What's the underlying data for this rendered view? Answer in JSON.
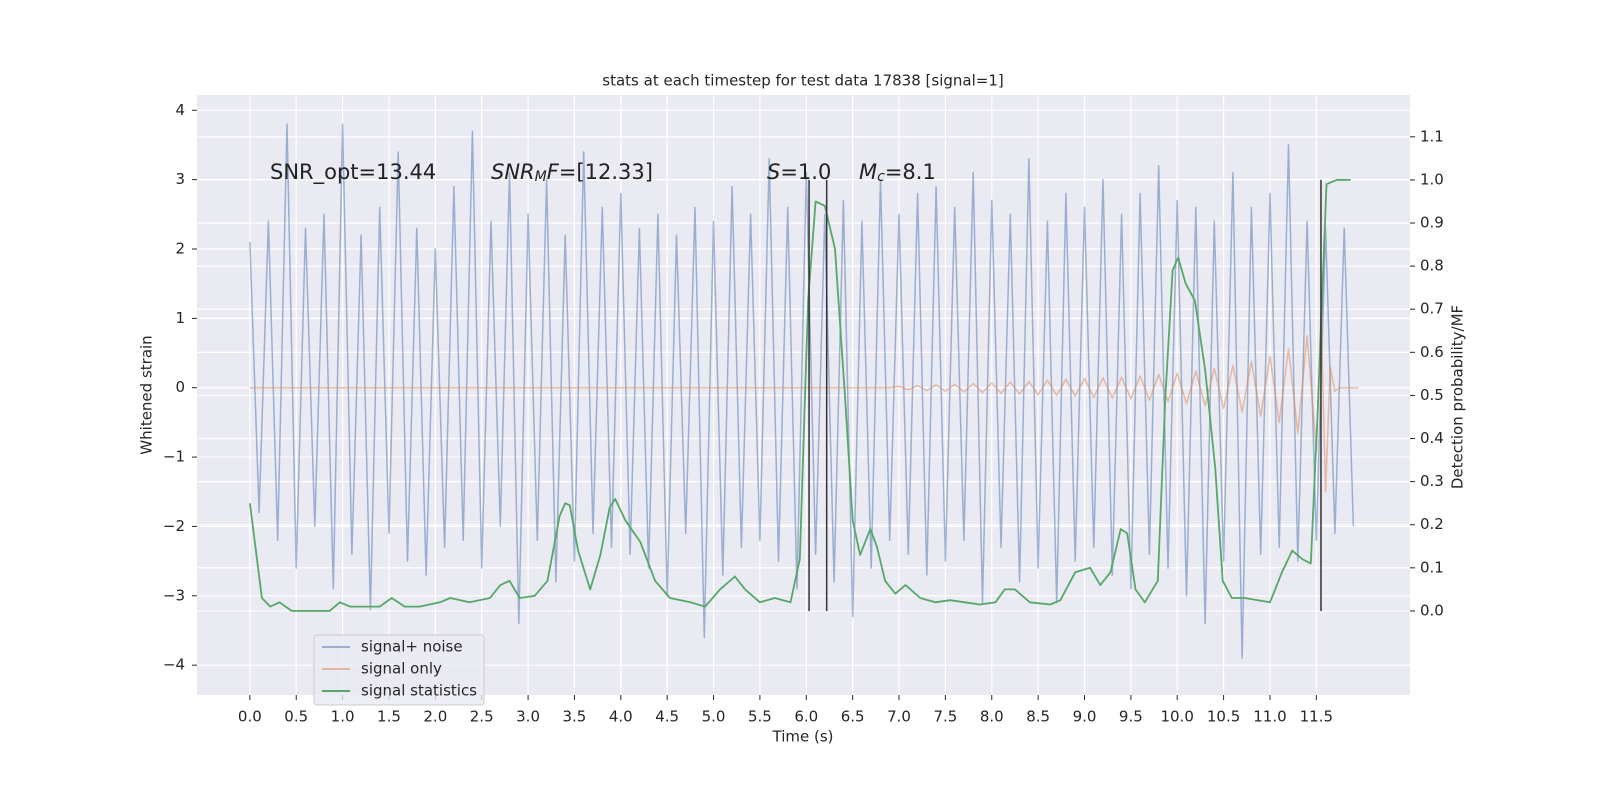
{
  "chart_data": {
    "type": "line",
    "title": "stats at each timestep for test data 17838 [signal=1]",
    "x_label": "Time (s)",
    "y_label": "Whitened strain",
    "y2_label": "Detection probability/MF",
    "xlim": [
      -0.57,
      12.51
    ],
    "ylim": [
      -4.43,
      4.22
    ],
    "y2lim": [
      -0.195,
      1.197
    ],
    "xticks": [
      {
        "value": 0,
        "label": "0.0"
      },
      0.5,
      {
        "value": 1,
        "label": "1.0"
      },
      1.5,
      {
        "value": 2,
        "label": "2.0"
      },
      2.5,
      {
        "value": 3,
        "label": "3.0"
      },
      3.5,
      {
        "value": 4,
        "label": "4.0"
      },
      4.5,
      {
        "value": 5,
        "label": "5.0"
      },
      5.5,
      {
        "value": 6,
        "label": "6.0"
      },
      6.5,
      {
        "value": 7,
        "label": "7.0"
      },
      7.5,
      {
        "value": 8,
        "label": "8.0"
      },
      8.5,
      {
        "value": 9,
        "label": "9.0"
      },
      9.5,
      {
        "value": 10,
        "label": "10.0"
      },
      10.5,
      {
        "value": 11,
        "label": "11.0"
      },
      11.5
    ],
    "yticks": [
      {
        "value": -4,
        "label": "−4"
      },
      {
        "value": -3,
        "label": "−3"
      },
      {
        "value": -2,
        "label": "−2"
      },
      {
        "value": -1,
        "label": "−1"
      },
      0,
      1,
      2,
      3,
      4
    ],
    "y2ticks": [
      {
        "value": 0,
        "label": "0.0"
      },
      0.1,
      0.2,
      0.3,
      0.4,
      0.5,
      0.6,
      0.7,
      0.8,
      0.9,
      {
        "value": 1,
        "label": "1.0"
      },
      1.1
    ],
    "grid": true,
    "legend": "lower left",
    "annotations": [
      [
        {
          "text": "SNR_opt=13.44"
        }
      ],
      [
        {
          "text": "SNR",
          "italic": true
        },
        {
          "text": "M",
          "italic": true,
          "sub": true
        },
        {
          "text": "F",
          "italic": true
        },
        {
          "text": "=[12.33]"
        }
      ],
      [
        {
          "text": "S",
          "italic": true
        },
        {
          "text": "=1.0"
        }
      ],
      [
        {
          "text": "M",
          "italic": true
        },
        {
          "text": "c",
          "italic": true,
          "sub": true
        },
        {
          "text": "=8.1"
        }
      ]
    ],
    "vlines": {
      "color": "#333333",
      "x": [
        6.03,
        6.22,
        11.55
      ],
      "y2": [
        0,
        1
      ]
    },
    "series": [
      {
        "name": "signal+ noise",
        "color": "#4c72b0",
        "opacity": 0.5,
        "x": [
          0,
          0.1,
          0.2,
          0.3,
          0.4,
          0.5,
          0.6,
          0.7,
          0.8,
          0.9,
          1,
          1.1,
          1.2,
          1.3,
          1.4,
          1.5,
          1.6,
          1.7,
          1.8,
          1.9,
          2,
          2.1,
          2.2,
          2.3,
          2.4,
          2.5,
          2.6,
          2.7,
          2.8,
          2.9,
          3,
          3.1,
          3.2,
          3.3,
          3.4,
          3.5,
          3.6,
          3.7,
          3.8,
          3.9,
          4,
          4.1,
          4.2,
          4.3,
          4.4,
          4.5,
          4.6,
          4.7,
          4.8,
          4.9,
          5,
          5.1,
          5.2,
          5.3,
          5.4,
          5.5,
          5.6,
          5.7,
          5.8,
          5.9,
          6,
          6.1,
          6.2,
          6.3,
          6.4,
          6.5,
          6.6,
          6.7,
          6.8,
          6.9,
          7,
          7.1,
          7.2,
          7.3,
          7.4,
          7.5,
          7.6,
          7.7,
          7.8,
          7.9,
          8,
          8.1,
          8.2,
          8.3,
          8.4,
          8.5,
          8.6,
          8.7,
          8.8,
          8.9,
          9,
          9.1,
          9.2,
          9.3,
          9.4,
          9.5,
          9.6,
          9.7,
          9.8,
          9.9,
          10,
          10.1,
          10.2,
          10.3,
          10.4,
          10.5,
          10.6,
          10.7,
          10.8,
          10.9,
          11,
          11.1,
          11.2,
          11.3,
          11.4,
          11.5,
          11.6,
          11.7,
          11.8,
          11.9
        ],
        "values": [
          2.1,
          -1.8,
          2.4,
          -2.2,
          3.8,
          -2.6,
          2.3,
          -2.0,
          2.5,
          -2.9,
          3.8,
          -2.4,
          2.2,
          -3.2,
          2.6,
          -2.1,
          3.4,
          -2.5,
          2.3,
          -2.7,
          2.0,
          -2.3,
          2.9,
          -2.2,
          3.7,
          -2.6,
          2.4,
          -2.0,
          3.1,
          -3.4,
          2.5,
          -2.2,
          3.0,
          -2.8,
          2.2,
          -2.5,
          3.4,
          -2.1,
          2.6,
          -2.3,
          2.8,
          -2.4,
          2.3,
          -2.6,
          2.5,
          -3.0,
          2.2,
          -2.1,
          2.6,
          -3.6,
          2.4,
          -2.7,
          2.9,
          -2.3,
          2.5,
          -2.2,
          3.3,
          -2.5,
          2.6,
          -2.9,
          3.1,
          -2.4,
          2.5,
          -2.8,
          2.7,
          -3.3,
          2.4,
          -2.6,
          3.0,
          -2.2,
          2.5,
          -2.4,
          2.8,
          -2.7,
          2.9,
          -2.5,
          2.6,
          -2.2,
          3.1,
          -3.1,
          2.7,
          -2.3,
          2.5,
          -2.8,
          3.3,
          -2.6,
          2.4,
          -3.1,
          2.8,
          -2.5,
          2.6,
          -2.3,
          3.0,
          -2.7,
          2.5,
          -2.9,
          2.8,
          -2.4,
          3.2,
          -2.6,
          2.7,
          -3.0,
          2.6,
          -3.4,
          2.4,
          -2.5,
          3.1,
          -3.9,
          2.6,
          -2.4,
          2.8,
          -2.3,
          3.5,
          -2.5,
          2.4,
          -2.2,
          2.3,
          -2.1,
          2.3,
          -2.0
        ]
      },
      {
        "name": "signal only",
        "color": "#dd8452",
        "opacity": 0.5,
        "x": [
          0,
          6.9,
          7,
          7.1,
          7.2,
          7.3,
          7.4,
          7.5,
          7.6,
          7.7,
          7.8,
          7.9,
          8,
          8.1,
          8.2,
          8.3,
          8.4,
          8.5,
          8.6,
          8.7,
          8.8,
          8.9,
          9,
          9.1,
          9.2,
          9.3,
          9.4,
          9.5,
          9.6,
          9.7,
          9.8,
          9.9,
          10,
          10.1,
          10.2,
          10.3,
          10.4,
          10.5,
          10.6,
          10.7,
          10.8,
          10.9,
          11,
          11.1,
          11.2,
          11.3,
          11.4,
          11.5,
          11.55,
          11.6,
          11.65,
          11.7,
          11.75,
          11.95
        ],
        "values": [
          0,
          0,
          0.02,
          -0.03,
          0.03,
          -0.04,
          0.04,
          -0.05,
          0.05,
          -0.06,
          0.06,
          -0.07,
          0.07,
          -0.08,
          0.08,
          -0.09,
          0.09,
          -0.1,
          0.11,
          -0.11,
          0.12,
          -0.12,
          0.13,
          -0.14,
          0.14,
          -0.15,
          0.15,
          -0.16,
          0.17,
          -0.18,
          0.19,
          -0.2,
          0.21,
          -0.23,
          0.24,
          -0.26,
          0.28,
          -0.3,
          0.32,
          -0.35,
          0.38,
          -0.41,
          0.45,
          -0.5,
          0.56,
          -0.65,
          0.75,
          -0.9,
          1.1,
          -1.5,
          0.3,
          -0.05,
          0,
          0
        ]
      },
      {
        "name": "signal statistics",
        "color": "#55a868",
        "opacity": 1,
        "axis": "y2",
        "x": [
          0,
          0.13,
          0.22,
          0.32,
          0.45,
          0.65,
          0.86,
          0.97,
          1.08,
          1.29,
          1.4,
          1.53,
          1.67,
          1.83,
          2.05,
          2.16,
          2.37,
          2.59,
          2.7,
          2.8,
          2.91,
          3.07,
          3.21,
          3.34,
          3.4,
          3.45,
          3.54,
          3.67,
          3.78,
          3.88,
          3.94,
          4.05,
          4.21,
          4.37,
          4.53,
          4.75,
          4.91,
          5.07,
          5.23,
          5.34,
          5.5,
          5.66,
          5.83,
          5.93,
          6.02,
          6.1,
          6.2,
          6.31,
          6.42,
          6.5,
          6.58,
          6.69,
          6.76,
          6.85,
          6.96,
          7.07,
          7.23,
          7.39,
          7.55,
          7.71,
          7.87,
          8.04,
          8.14,
          8.25,
          8.41,
          8.63,
          8.74,
          8.9,
          9.06,
          9.17,
          9.28,
          9.39,
          9.46,
          9.55,
          9.65,
          9.79,
          9.87,
          9.95,
          10.01,
          10.09,
          10.19,
          10.3,
          10.41,
          10.49,
          10.59,
          10.73,
          10.87,
          11,
          11.13,
          11.24,
          11.35,
          11.44,
          11.52,
          11.61,
          11.72,
          11.87
        ],
        "values": [
          0.25,
          0.03,
          0.01,
          0.02,
          0,
          0,
          0,
          0.02,
          0.01,
          0.01,
          0.01,
          0.03,
          0.01,
          0.01,
          0.02,
          0.03,
          0.02,
          0.03,
          0.06,
          0.07,
          0.03,
          0.035,
          0.07,
          0.22,
          0.25,
          0.245,
          0.14,
          0.05,
          0.13,
          0.24,
          0.26,
          0.21,
          0.16,
          0.07,
          0.03,
          0.02,
          0.01,
          0.05,
          0.08,
          0.05,
          0.02,
          0.03,
          0.02,
          0.12,
          0.72,
          0.95,
          0.94,
          0.84,
          0.49,
          0.21,
          0.13,
          0.19,
          0.15,
          0.07,
          0.04,
          0.06,
          0.03,
          0.02,
          0.025,
          0.02,
          0.015,
          0.02,
          0.05,
          0.05,
          0.02,
          0.015,
          0.025,
          0.09,
          0.1,
          0.06,
          0.09,
          0.19,
          0.18,
          0.05,
          0.02,
          0.07,
          0.49,
          0.79,
          0.82,
          0.76,
          0.72,
          0.56,
          0.33,
          0.07,
          0.03,
          0.03,
          0.025,
          0.02,
          0.09,
          0.14,
          0.12,
          0.11,
          0.49,
          0.99,
          1.0,
          1.0
        ]
      }
    ]
  }
}
